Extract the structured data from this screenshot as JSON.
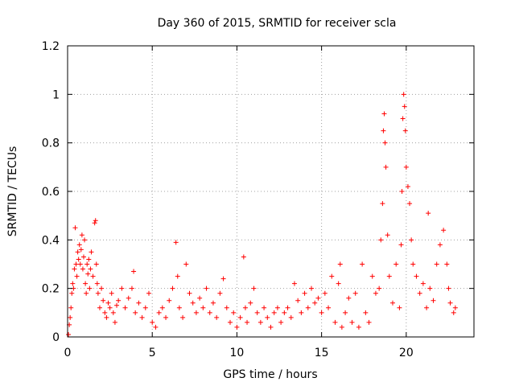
{
  "chart_data": {
    "type": "scatter",
    "title": "Day 360 of 2015, SRMTID for receiver scla",
    "xlabel": "GPS time / hours",
    "ylabel": "SRMTID / TECUs",
    "xlim": [
      0,
      24
    ],
    "ylim": [
      0,
      1.2
    ],
    "xticks": [
      "0",
      "5",
      "10",
      "15",
      "20"
    ],
    "xtick_values": [
      0,
      5,
      10,
      15,
      20
    ],
    "yticks": [
      "0",
      "0.2",
      "0.4",
      "0.6",
      "0.8",
      "1",
      "1.2"
    ],
    "ytick_values": [
      0,
      0.2,
      0.4,
      0.6,
      0.8,
      1.0,
      1.2
    ],
    "grid": true,
    "marker": "+",
    "color": "#ff0000",
    "series": [
      {
        "name": "SRMTID",
        "points": [
          [
            0.05,
            0.01
          ],
          [
            0.1,
            0.05
          ],
          [
            0.15,
            0.08
          ],
          [
            0.2,
            0.12
          ],
          [
            0.25,
            0.18
          ],
          [
            0.3,
            0.22
          ],
          [
            0.35,
            0.2
          ],
          [
            0.4,
            0.28
          ],
          [
            0.45,
            0.45
          ],
          [
            0.5,
            0.3
          ],
          [
            0.55,
            0.25
          ],
          [
            0.6,
            0.35
          ],
          [
            0.65,
            0.32
          ],
          [
            0.7,
            0.38
          ],
          [
            0.75,
            0.3
          ],
          [
            0.8,
            0.36
          ],
          [
            0.85,
            0.42
          ],
          [
            0.9,
            0.28
          ],
          [
            0.95,
            0.33
          ],
          [
            1.0,
            0.4
          ],
          [
            1.05,
            0.22
          ],
          [
            1.1,
            0.18
          ],
          [
            1.15,
            0.3
          ],
          [
            1.2,
            0.26
          ],
          [
            1.25,
            0.32
          ],
          [
            1.3,
            0.2
          ],
          [
            1.35,
            0.28
          ],
          [
            1.4,
            0.35
          ],
          [
            1.5,
            0.25
          ],
          [
            1.6,
            0.47
          ],
          [
            1.65,
            0.48
          ],
          [
            1.7,
            0.3
          ],
          [
            1.75,
            0.22
          ],
          [
            1.8,
            0.18
          ],
          [
            1.9,
            0.12
          ],
          [
            2.0,
            0.2
          ],
          [
            2.1,
            0.15
          ],
          [
            2.2,
            0.1
          ],
          [
            2.3,
            0.08
          ],
          [
            2.4,
            0.14
          ],
          [
            2.5,
            0.12
          ],
          [
            2.6,
            0.18
          ],
          [
            2.7,
            0.1
          ],
          [
            2.8,
            0.06
          ],
          [
            2.9,
            0.13
          ],
          [
            3.0,
            0.15
          ],
          [
            3.2,
            0.2
          ],
          [
            3.4,
            0.12
          ],
          [
            3.6,
            0.16
          ],
          [
            3.8,
            0.2
          ],
          [
            3.9,
            0.27
          ],
          [
            4.0,
            0.1
          ],
          [
            4.2,
            0.14
          ],
          [
            4.4,
            0.08
          ],
          [
            4.6,
            0.12
          ],
          [
            4.8,
            0.18
          ],
          [
            5.0,
            0.06
          ],
          [
            5.2,
            0.04
          ],
          [
            5.4,
            0.1
          ],
          [
            5.6,
            0.12
          ],
          [
            5.8,
            0.08
          ],
          [
            6.0,
            0.15
          ],
          [
            6.2,
            0.2
          ],
          [
            6.4,
            0.39
          ],
          [
            6.5,
            0.25
          ],
          [
            6.6,
            0.12
          ],
          [
            6.8,
            0.08
          ],
          [
            7.0,
            0.3
          ],
          [
            7.2,
            0.18
          ],
          [
            7.4,
            0.14
          ],
          [
            7.6,
            0.1
          ],
          [
            7.8,
            0.16
          ],
          [
            8.0,
            0.12
          ],
          [
            8.2,
            0.2
          ],
          [
            8.4,
            0.1
          ],
          [
            8.6,
            0.14
          ],
          [
            8.8,
            0.08
          ],
          [
            9.0,
            0.18
          ],
          [
            9.2,
            0.24
          ],
          [
            9.4,
            0.12
          ],
          [
            9.6,
            0.06
          ],
          [
            9.8,
            0.1
          ],
          [
            10.0,
            0.04
          ],
          [
            10.2,
            0.08
          ],
          [
            10.4,
            0.33
          ],
          [
            10.5,
            0.12
          ],
          [
            10.6,
            0.06
          ],
          [
            10.8,
            0.14
          ],
          [
            11.0,
            0.2
          ],
          [
            11.2,
            0.1
          ],
          [
            11.4,
            0.06
          ],
          [
            11.6,
            0.12
          ],
          [
            11.8,
            0.08
          ],
          [
            12.0,
            0.04
          ],
          [
            12.2,
            0.1
          ],
          [
            12.4,
            0.12
          ],
          [
            12.6,
            0.06
          ],
          [
            12.8,
            0.1
          ],
          [
            13.0,
            0.12
          ],
          [
            13.2,
            0.08
          ],
          [
            13.4,
            0.22
          ],
          [
            13.6,
            0.15
          ],
          [
            13.8,
            0.1
          ],
          [
            14.0,
            0.18
          ],
          [
            14.2,
            0.12
          ],
          [
            14.4,
            0.2
          ],
          [
            14.6,
            0.14
          ],
          [
            14.8,
            0.16
          ],
          [
            15.0,
            0.1
          ],
          [
            15.2,
            0.18
          ],
          [
            15.4,
            0.12
          ],
          [
            15.6,
            0.25
          ],
          [
            15.8,
            0.06
          ],
          [
            16.0,
            0.22
          ],
          [
            16.1,
            0.3
          ],
          [
            16.2,
            0.04
          ],
          [
            16.4,
            0.1
          ],
          [
            16.6,
            0.16
          ],
          [
            16.8,
            0.06
          ],
          [
            17.0,
            0.18
          ],
          [
            17.2,
            0.04
          ],
          [
            17.4,
            0.3
          ],
          [
            17.6,
            0.1
          ],
          [
            17.8,
            0.06
          ],
          [
            18.0,
            0.25
          ],
          [
            18.2,
            0.18
          ],
          [
            18.4,
            0.2
          ],
          [
            18.5,
            0.4
          ],
          [
            18.6,
            0.55
          ],
          [
            18.65,
            0.85
          ],
          [
            18.7,
            0.92
          ],
          [
            18.75,
            0.8
          ],
          [
            18.8,
            0.7
          ],
          [
            18.9,
            0.42
          ],
          [
            19.0,
            0.25
          ],
          [
            19.2,
            0.14
          ],
          [
            19.4,
            0.3
          ],
          [
            19.6,
            0.12
          ],
          [
            19.7,
            0.38
          ],
          [
            19.75,
            0.6
          ],
          [
            19.8,
            0.9
          ],
          [
            19.85,
            1.0
          ],
          [
            19.9,
            0.95
          ],
          [
            19.95,
            0.85
          ],
          [
            20.0,
            0.7
          ],
          [
            20.1,
            0.62
          ],
          [
            20.2,
            0.55
          ],
          [
            20.3,
            0.4
          ],
          [
            20.4,
            0.3
          ],
          [
            20.6,
            0.25
          ],
          [
            20.8,
            0.18
          ],
          [
            21.0,
            0.22
          ],
          [
            21.2,
            0.12
          ],
          [
            21.3,
            0.51
          ],
          [
            21.4,
            0.2
          ],
          [
            21.6,
            0.15
          ],
          [
            21.8,
            0.3
          ],
          [
            22.0,
            0.38
          ],
          [
            22.2,
            0.44
          ],
          [
            22.4,
            0.3
          ],
          [
            22.5,
            0.2
          ],
          [
            22.6,
            0.14
          ],
          [
            22.8,
            0.1
          ],
          [
            22.9,
            0.12
          ]
        ]
      }
    ]
  }
}
